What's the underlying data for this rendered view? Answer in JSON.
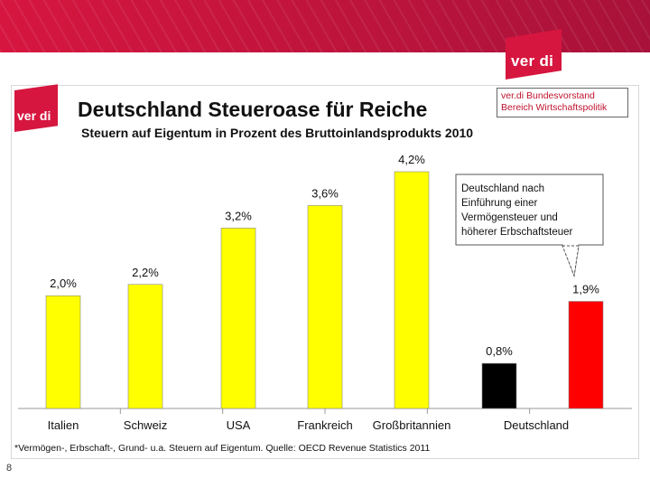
{
  "header": {
    "logo_text": "ver di"
  },
  "slide": {
    "logo_text": "ver di",
    "title": "Deutschland Steueroase für Reiche",
    "subtitle": "Steuern auf Eigentum in Prozent des Bruttoinlandsprodukts 2010",
    "publisher_line1": "ver.di Bundesvorstand",
    "publisher_line2": "Bereich Wirtschaftspolitik",
    "source_note": "*Vermögen-, Erbschaft-, Grund- u.a. Steuern auf Eigentum. Quelle: OECD Revenue Statistics 2011",
    "callout": {
      "lines": [
        "Deutschland nach",
        "Einführung einer",
        "Vermögensteuer und",
        "höherer Erbschaftsteuer"
      ]
    }
  },
  "page_number": "8",
  "colors": {
    "yellow": "#ffff00",
    "black": "#000000",
    "red": "#ff0000",
    "brand": "#d6163f"
  },
  "chart_data": {
    "type": "bar",
    "title": "Deutschland Steueroase für Reiche",
    "subtitle": "Steuern auf Eigentum in Prozent des Bruttoinlandsprodukts 2010",
    "categories": [
      "Italien",
      "Schweiz",
      "USA",
      "Frankreich",
      "Großbritannien",
      "Deutschland"
    ],
    "bars": [
      {
        "category": "Italien",
        "value": 2.0,
        "label": "2,0%",
        "color": "#ffff00"
      },
      {
        "category": "Schweiz",
        "value": 2.2,
        "label": "2,2%",
        "color": "#ffff00"
      },
      {
        "category": "USA",
        "value": 3.2,
        "label": "3,2%",
        "color": "#ffff00"
      },
      {
        "category": "Frankreich",
        "value": 3.6,
        "label": "3,6%",
        "color": "#ffff00"
      },
      {
        "category": "Großbritannien",
        "value": 4.2,
        "label": "4,2%",
        "color": "#ffff00"
      },
      {
        "category": "Deutschland",
        "value": 0.8,
        "label": "0,8%",
        "color": "#000000"
      },
      {
        "category": "Deutschland",
        "value": 1.9,
        "label": "1,9%",
        "color": "#ff0000"
      }
    ],
    "xlabel": "",
    "ylabel": "",
    "ylim": [
      0,
      4.2
    ],
    "grid": false
  }
}
